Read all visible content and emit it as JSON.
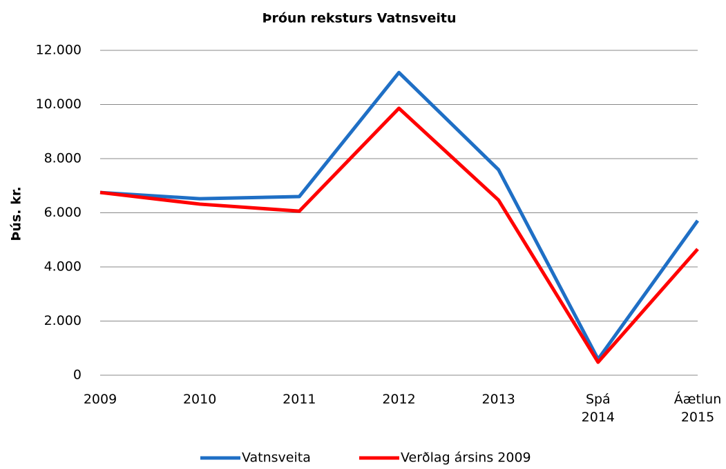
{
  "chart_data": {
    "type": "line",
    "title": "Þróun reksturs Vatnsveitu",
    "y_label": "Þús. kr.",
    "categories": [
      "2009",
      "2010",
      "2011",
      "2012",
      "2013",
      "Spá 2014",
      "Áætlun 2015"
    ],
    "series": [
      {
        "name": "Vatnsveita",
        "color": "#1f6fc5",
        "values": [
          6750,
          6520,
          6600,
          11180,
          7590,
          590,
          5710
        ]
      },
      {
        "name": "Verðlag ársins 2009",
        "color": "#ff0000",
        "values": [
          6750,
          6320,
          6060,
          9860,
          6470,
          480,
          4660
        ]
      }
    ],
    "ylim": [
      0,
      12000
    ],
    "yticks": [
      0,
      {
        "value": 2000,
        "label": "2.000"
      },
      {
        "value": 4000,
        "label": "4.000"
      },
      {
        "value": 6000,
        "label": "6.000"
      },
      {
        "value": 8000,
        "label": "8.000"
      },
      {
        "value": 10000,
        "label": "10.000"
      },
      {
        "value": 12000,
        "label": "12.000"
      }
    ],
    "grid": true,
    "legend": "bottom"
  }
}
